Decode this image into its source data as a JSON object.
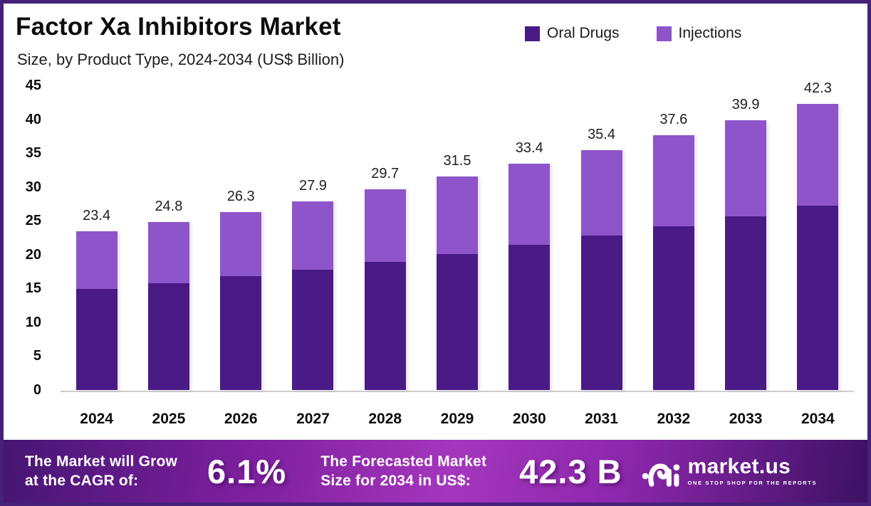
{
  "title": "Factor Xa Inhibitors Market",
  "subtitle": "Size, by Product Type, 2024-2034 (US$ Billion)",
  "legend": {
    "items": [
      {
        "label": "Oral Drugs",
        "color": "#4a1f86"
      },
      {
        "label": "Injections",
        "color": "#8d55c9"
      }
    ]
  },
  "chart_data": {
    "type": "bar",
    "stacked": true,
    "title": "Factor Xa Inhibitors Market",
    "subtitle": "Size, by Product Type, 2024-2034 (US$ Billion)",
    "unit": "US$ Billion",
    "categories": [
      "2024",
      "2025",
      "2026",
      "2027",
      "2028",
      "2029",
      "2030",
      "2031",
      "2032",
      "2033",
      "2034"
    ],
    "series": [
      {
        "name": "Oral Drugs",
        "color": "#4a1a86",
        "values": [
          14.9,
          15.8,
          16.8,
          17.8,
          18.9,
          20.1,
          21.4,
          22.8,
          24.2,
          25.7,
          27.2
        ]
      },
      {
        "name": "Injections",
        "color": "#8d55c9",
        "values": [
          8.5,
          9.0,
          9.5,
          10.1,
          10.8,
          11.4,
          12.0,
          12.6,
          13.4,
          14.2,
          15.1
        ]
      }
    ],
    "totals": [
      23.4,
      24.8,
      26.3,
      27.9,
      29.7,
      31.5,
      33.4,
      35.4,
      37.6,
      39.9,
      42.3
    ],
    "total_labels": [
      "23.4",
      "24.8",
      "26.3",
      "27.9",
      "29.7",
      "31.5",
      "33.4",
      "35.4",
      "37.6",
      "39.9",
      "42.3"
    ],
    "ylim": [
      0,
      45
    ],
    "ytick_step": 5,
    "grid": false,
    "legend_position": "top-right",
    "value_labels_position": "above-bar-total"
  },
  "banner": {
    "cagr_label_line1": "The Market will Grow",
    "cagr_label_line2": "at the CAGR of:",
    "cagr_value": "6.1%",
    "forecast_label_line1": "The Forecasted Market",
    "forecast_label_line2": "Size for 2034 in US$:",
    "forecast_value": "42.3 B",
    "brand_name": "market.us",
    "brand_tagline": "ONE STOP SHOP FOR THE REPORTS"
  },
  "colors": {
    "frame_border": "#46217a",
    "oral_bar": "#4a1a86",
    "injections_bar": "#8d55c9",
    "axis_line": "#cccccc",
    "banner_gradient_edges": "#451672",
    "banner_gradient_center": "#a436bd"
  }
}
